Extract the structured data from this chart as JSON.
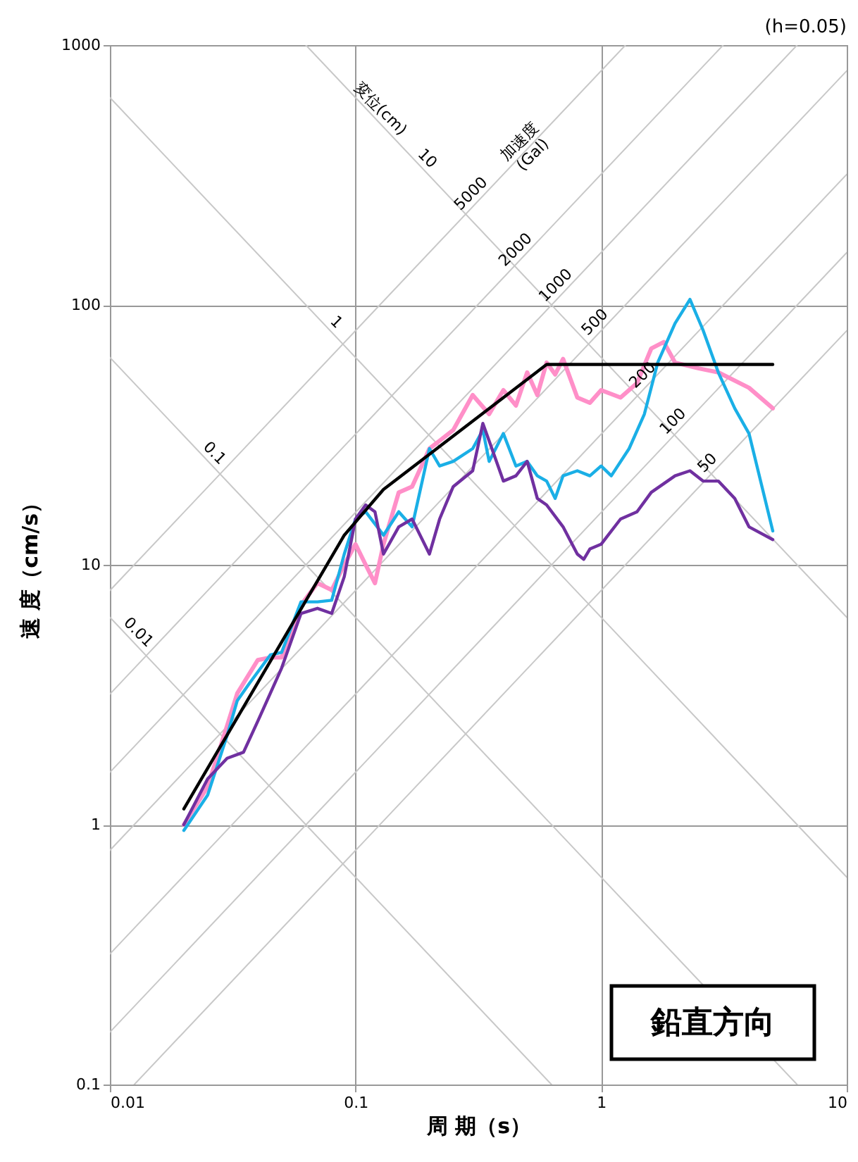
{
  "chart_data": {
    "type": "line",
    "xlabel": "周 期（s）",
    "ylabel": "速 度（cm/s）",
    "log": "xy",
    "grid": true,
    "legend": false,
    "xlim": [
      0.01,
      10
    ],
    "xticks": [
      0.01,
      0.1,
      1,
      10
    ],
    "ylim": [
      0.1,
      1000
    ],
    "yticks": [
      0.1,
      1,
      10,
      100,
      1000
    ],
    "series": [
      {
        "color": "#c8c8c8",
        "x": [
          0.01,
          0.628
        ],
        "values": [
          6.28,
          0.1
        ]
      },
      {
        "color": "#c8c8c8",
        "x": [
          0.01,
          6.28
        ],
        "values": [
          62.8,
          0.1
        ]
      },
      {
        "color": "#c8c8c8",
        "x": [
          0.01,
          10
        ],
        "values": [
          628,
          0.628
        ]
      },
      {
        "color": "#c8c8c8",
        "x": [
          0.0628,
          10
        ],
        "values": [
          1000,
          6.28
        ]
      },
      {
        "color": "#c8c8c8",
        "x": [
          0.01257,
          10
        ],
        "values": [
          0.1,
          79.6
        ]
      },
      {
        "color": "#c8c8c8",
        "x": [
          0.01,
          10
        ],
        "values": [
          0.159,
          159
        ]
      },
      {
        "color": "#c8c8c8",
        "x": [
          0.01,
          10
        ],
        "values": [
          0.318,
          318
        ]
      },
      {
        "color": "#c8c8c8",
        "x": [
          0.01,
          10
        ],
        "values": [
          0.796,
          796
        ]
      },
      {
        "color": "#c8c8c8",
        "x": [
          0.01,
          6.28
        ],
        "values": [
          1.59,
          1000
        ]
      },
      {
        "color": "#c8c8c8",
        "x": [
          0.01,
          3.14
        ],
        "values": [
          3.18,
          1000
        ]
      },
      {
        "color": "#c8c8c8",
        "x": [
          0.01,
          1.257
        ],
        "values": [
          7.96,
          1000
        ]
      },
      {
        "color": "#ff8fc8",
        "x": [
          0.02,
          0.025,
          0.03,
          0.033,
          0.04,
          0.045,
          0.05,
          0.06,
          0.07,
          0.08,
          0.09,
          0.1,
          0.11,
          0.12,
          0.13,
          0.15,
          0.17,
          0.2,
          0.22,
          0.25,
          0.3,
          0.35,
          0.4,
          0.45,
          0.5,
          0.55,
          0.6,
          0.65,
          0.7,
          0.8,
          0.9,
          1.0,
          1.2,
          1.4,
          1.6,
          1.8,
          2.0,
          2.5,
          3.0,
          4.0,
          5.0
        ],
        "values": [
          1.0,
          1.4,
          2.4,
          3.2,
          4.3,
          4.4,
          4.4,
          7,
          8.5,
          8,
          10,
          12,
          10,
          8.5,
          12,
          19,
          20,
          28,
          30,
          33,
          45,
          38,
          47,
          41,
          55,
          45,
          60,
          54,
          62,
          44,
          42,
          47,
          44,
          50,
          68,
          72,
          60,
          57,
          55,
          48,
          40
        ]
      },
      {
        "color": "#1aafe6",
        "x": [
          0.02,
          0.025,
          0.03,
          0.033,
          0.037,
          0.045,
          0.05,
          0.06,
          0.07,
          0.08,
          0.09,
          0.1,
          0.11,
          0.13,
          0.15,
          0.17,
          0.2,
          0.22,
          0.25,
          0.3,
          0.33,
          0.35,
          0.4,
          0.45,
          0.5,
          0.55,
          0.6,
          0.65,
          0.7,
          0.8,
          0.9,
          1.0,
          1.1,
          1.3,
          1.5,
          1.7,
          2.0,
          2.3,
          2.6,
          3.0,
          3.5,
          4.0,
          5.0
        ],
        "values": [
          0.95,
          1.3,
          2.2,
          3.0,
          3.5,
          4.5,
          4.6,
          7.2,
          7.2,
          7.3,
          11,
          15,
          16,
          13,
          16,
          14,
          28,
          24,
          25,
          28,
          33,
          25,
          32,
          24,
          25,
          22,
          21,
          18,
          22,
          23,
          22,
          24,
          22,
          28,
          38,
          60,
          85,
          105,
          80,
          55,
          40,
          32,
          13.5
        ]
      },
      {
        "color": "#7030a0",
        "x": [
          0.02,
          0.025,
          0.03,
          0.035,
          0.04,
          0.05,
          0.06,
          0.07,
          0.08,
          0.09,
          0.1,
          0.11,
          0.12,
          0.13,
          0.15,
          0.17,
          0.2,
          0.22,
          0.25,
          0.3,
          0.33,
          0.35,
          0.4,
          0.45,
          0.5,
          0.55,
          0.6,
          0.7,
          0.8,
          0.85,
          0.9,
          1.0,
          1.2,
          1.4,
          1.6,
          2.0,
          2.3,
          2.6,
          3.0,
          3.5,
          4.0,
          5.0
        ],
        "values": [
          1.0,
          1.5,
          1.8,
          1.9,
          2.5,
          4,
          6.5,
          6.8,
          6.5,
          9,
          15,
          17,
          16,
          11,
          14,
          15,
          11,
          15,
          20,
          23,
          35,
          30,
          21,
          22,
          25,
          18,
          17,
          14,
          11,
          10.5,
          11.5,
          12,
          15,
          16,
          19,
          22,
          23,
          21,
          21,
          18,
          14,
          12.5
        ]
      },
      {
        "color": "#000000",
        "x": [
          0.02,
          0.09,
          0.13,
          0.6,
          5
        ],
        "values": [
          1.15,
          13,
          19.5,
          59,
          59
        ]
      }
    ],
    "annotations": [
      "(h=0.05)",
      "鉛直方向",
      {
        "text": "0.01",
        "x": 0.0122,
        "y": 5.15
      },
      {
        "text": "0.1",
        "x": 0.0249,
        "y": 25.2
      },
      {
        "text": "1",
        "x": 0.078,
        "y": 80.5
      },
      {
        "text": "10",
        "x": 0.183,
        "y": 343
      },
      {
        "text": "変位(cm)",
        "x": 0.118,
        "y": 532
      },
      {
        "text": "5000",
        "x": 0.316,
        "y": 251
      },
      {
        "text": "2000",
        "x": 0.48,
        "y": 152.8
      },
      {
        "text": "1000",
        "x": 0.7,
        "y": 111.4
      },
      {
        "text": "500",
        "x": 1.01,
        "y": 80.4
      },
      {
        "text": "200",
        "x": 1.58,
        "y": 50.3
      },
      {
        "text": "100",
        "x": 2.1,
        "y": 33.4
      },
      {
        "text": "50",
        "x": 2.9,
        "y": 23.1
      },
      {
        "text": "加速度\n(Gal)",
        "x": 0.5,
        "y": 398
      }
    ]
  }
}
